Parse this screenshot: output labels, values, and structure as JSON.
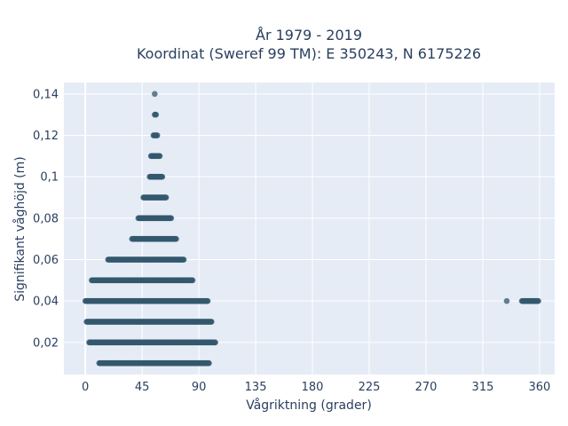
{
  "chart_data": {
    "type": "scatter",
    "title_line1": "År 1979 - 2019",
    "title_line2": "Koordinat (Sweref 99 TM): E 350243, N 6175226",
    "xlabel": "Vågriktning (grader)",
    "ylabel": "Signifikant våghöjd (m)",
    "xlim": [
      -17,
      372
    ],
    "ylim": [
      0.0045,
      0.1455
    ],
    "x_ticks": [
      0,
      45,
      90,
      135,
      180,
      225,
      270,
      315,
      360
    ],
    "y_ticks": [
      0.02,
      0.04,
      0.06,
      0.08,
      0.1,
      0.12,
      0.14
    ],
    "y_tick_labels": [
      "0,02",
      "0,04",
      "0,06",
      "0,08",
      "0,1",
      "0,12",
      "0,14"
    ],
    "grid": true,
    "marker_color": "#34586e",
    "plot_background": "#e5ecf6",
    "series": [
      {
        "clusters": [
          {
            "y": 0.14,
            "x": [
              55,
              55
            ]
          },
          {
            "y": 0.13,
            "x": [
              55,
              56
            ]
          },
          {
            "y": 0.12,
            "x": [
              54,
              57
            ]
          },
          {
            "y": 0.11,
            "x": [
              52,
              59
            ]
          },
          {
            "y": 0.1,
            "x": [
              51,
              61
            ]
          },
          {
            "y": 0.09,
            "x": [
              46,
              64
            ]
          },
          {
            "y": 0.08,
            "x": [
              42,
              68
            ]
          },
          {
            "y": 0.07,
            "x": [
              37,
              72
            ]
          },
          {
            "y": 0.06,
            "x": [
              18,
              78
            ]
          },
          {
            "y": 0.05,
            "x": [
              5,
              85
            ]
          },
          {
            "y": 0.04,
            "x": [
              0,
              97
            ]
          },
          {
            "y": 0.04,
            "x": [
              334,
              334
            ]
          },
          {
            "y": 0.04,
            "x": [
              346,
              359
            ]
          },
          {
            "y": 0.03,
            "x": [
              1,
              100
            ]
          },
          {
            "y": 0.02,
            "x": [
              3,
              103
            ]
          },
          {
            "y": 0.01,
            "x": [
              11,
              98
            ]
          }
        ]
      }
    ]
  }
}
